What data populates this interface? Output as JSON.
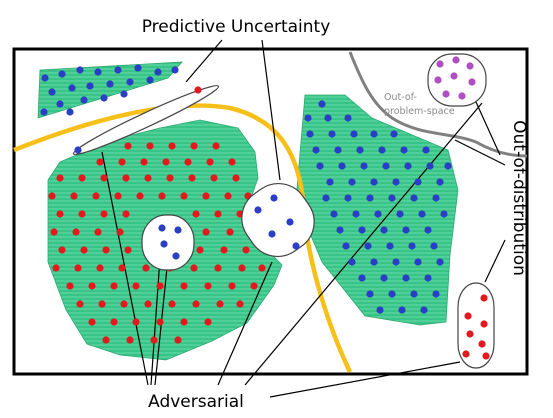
{
  "labels": {
    "predictive_uncertainty": "Predictive Uncertainty",
    "adversarial": "Adversarial",
    "out_of_distribution": "Out-of-distribution",
    "out_of_problem_space_line1": "Out-of-",
    "out_of_problem_space_line2": "problem-space"
  },
  "colors": {
    "frame": "#000000",
    "region_fill": "#3cc98b",
    "boundary_yellow": "#f7bf1a",
    "boundary_gray": "#808080",
    "dot_red": "#e3191e",
    "dot_blue": "#2b3fc4",
    "dot_purple": "#b04ec4",
    "pointer_line": "#000000"
  }
}
